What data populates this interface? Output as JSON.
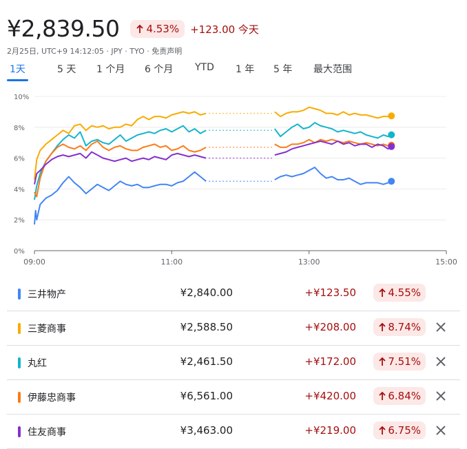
{
  "header": {
    "price": "¥2,839.50",
    "pct": "4.53%",
    "change": "+123.00 今天",
    "subline": "2月25日, UTC+9 14:12:05 · JPY · TYO · 免责声明"
  },
  "tabs": [
    "1天",
    "5 天",
    "1 个月",
    "6 个月",
    "YTD",
    "1 年",
    "5 年",
    "最大范围"
  ],
  "active_tab": "1天",
  "colors": {
    "up_text": "#a50e0e",
    "up_bg": "#fce8e6",
    "accent": "#1a73e8"
  },
  "chart_data": {
    "type": "line",
    "x_ticks": [
      "09:00",
      "11:00",
      "13:00",
      "15:00"
    ],
    "y_ticks": [
      "0%",
      "2%",
      "4%",
      "6%",
      "8%",
      "10%"
    ],
    "xlim": [
      "09:00",
      "15:00"
    ],
    "ylim": [
      0,
      10
    ],
    "break": {
      "start": "11:30",
      "end": "12:30",
      "style": "dotted"
    },
    "last_time": "14:12",
    "series": [
      {
        "name": "三井物产",
        "color": "#4285f4",
        "values": [
          [
            540,
            1.7
          ],
          [
            541,
            2.6
          ],
          [
            542,
            2.0
          ],
          [
            545,
            3.0
          ],
          [
            550,
            3.4
          ],
          [
            555,
            3.6
          ],
          [
            560,
            3.9
          ],
          [
            565,
            4.4
          ],
          [
            570,
            4.8
          ],
          [
            575,
            4.4
          ],
          [
            580,
            4.1
          ],
          [
            585,
            3.7
          ],
          [
            590,
            4.0
          ],
          [
            595,
            4.3
          ],
          [
            600,
            4.1
          ],
          [
            605,
            3.9
          ],
          [
            610,
            4.2
          ],
          [
            615,
            4.5
          ],
          [
            620,
            4.3
          ],
          [
            625,
            4.2
          ],
          [
            630,
            4.3
          ],
          [
            635,
            4.1
          ],
          [
            640,
            4.1
          ],
          [
            645,
            4.2
          ],
          [
            650,
            4.3
          ],
          [
            655,
            4.3
          ],
          [
            660,
            4.2
          ],
          [
            665,
            4.4
          ],
          [
            670,
            4.5
          ],
          [
            675,
            4.8
          ],
          [
            680,
            5.1
          ],
          [
            685,
            4.8
          ],
          [
            690,
            4.5
          ],
          [
            750,
            4.6
          ],
          [
            755,
            4.8
          ],
          [
            760,
            4.9
          ],
          [
            765,
            4.8
          ],
          [
            770,
            4.9
          ],
          [
            775,
            5.0
          ],
          [
            780,
            5.2
          ],
          [
            785,
            5.4
          ],
          [
            790,
            5.0
          ],
          [
            795,
            4.7
          ],
          [
            800,
            4.8
          ],
          [
            805,
            4.6
          ],
          [
            810,
            4.6
          ],
          [
            815,
            4.7
          ],
          [
            820,
            4.5
          ],
          [
            825,
            4.3
          ],
          [
            830,
            4.4
          ],
          [
            835,
            4.4
          ],
          [
            840,
            4.4
          ],
          [
            845,
            4.3
          ],
          [
            849,
            4.4
          ],
          [
            852,
            4.5
          ]
        ]
      },
      {
        "name": "三菱商事",
        "color": "#f9ab00",
        "values": [
          [
            540,
            4.6
          ],
          [
            542,
            5.9
          ],
          [
            545,
            6.5
          ],
          [
            550,
            6.9
          ],
          [
            555,
            7.2
          ],
          [
            560,
            7.5
          ],
          [
            565,
            7.8
          ],
          [
            570,
            7.6
          ],
          [
            575,
            8.1
          ],
          [
            580,
            8.2
          ],
          [
            585,
            7.8
          ],
          [
            590,
            8.1
          ],
          [
            595,
            8.0
          ],
          [
            600,
            8.1
          ],
          [
            605,
            7.9
          ],
          [
            610,
            8.0
          ],
          [
            615,
            8.0
          ],
          [
            620,
            8.2
          ],
          [
            625,
            8.1
          ],
          [
            630,
            8.5
          ],
          [
            635,
            8.7
          ],
          [
            640,
            8.5
          ],
          [
            645,
            8.7
          ],
          [
            650,
            8.7
          ],
          [
            655,
            8.6
          ],
          [
            660,
            8.8
          ],
          [
            665,
            8.9
          ],
          [
            670,
            9.0
          ],
          [
            675,
            8.9
          ],
          [
            680,
            9.0
          ],
          [
            685,
            8.8
          ],
          [
            690,
            8.9
          ],
          [
            750,
            9.0
          ],
          [
            755,
            8.7
          ],
          [
            760,
            8.9
          ],
          [
            765,
            9.0
          ],
          [
            770,
            9.0
          ],
          [
            775,
            9.1
          ],
          [
            780,
            9.3
          ],
          [
            785,
            9.2
          ],
          [
            790,
            9.1
          ],
          [
            795,
            8.9
          ],
          [
            800,
            8.9
          ],
          [
            805,
            8.8
          ],
          [
            810,
            9.0
          ],
          [
            815,
            8.8
          ],
          [
            820,
            8.9
          ],
          [
            825,
            8.8
          ],
          [
            830,
            8.8
          ],
          [
            835,
            8.7
          ],
          [
            840,
            8.6
          ],
          [
            845,
            8.7
          ],
          [
            849,
            8.7
          ],
          [
            852,
            8.74
          ]
        ]
      },
      {
        "name": "丸红",
        "color": "#12b5cb",
        "values": [
          [
            540,
            3.3
          ],
          [
            542,
            4.2
          ],
          [
            545,
            5.0
          ],
          [
            550,
            5.8
          ],
          [
            555,
            6.3
          ],
          [
            560,
            6.8
          ],
          [
            565,
            7.2
          ],
          [
            570,
            7.5
          ],
          [
            575,
            7.3
          ],
          [
            580,
            7.7
          ],
          [
            585,
            6.8
          ],
          [
            590,
            7.1
          ],
          [
            595,
            7.2
          ],
          [
            600,
            7.0
          ],
          [
            605,
            6.9
          ],
          [
            610,
            7.2
          ],
          [
            615,
            7.5
          ],
          [
            620,
            7.1
          ],
          [
            625,
            7.3
          ],
          [
            630,
            7.5
          ],
          [
            635,
            7.6
          ],
          [
            640,
            7.7
          ],
          [
            645,
            7.6
          ],
          [
            650,
            7.8
          ],
          [
            655,
            7.9
          ],
          [
            660,
            7.7
          ],
          [
            665,
            7.9
          ],
          [
            670,
            8.1
          ],
          [
            675,
            7.7
          ],
          [
            680,
            7.9
          ],
          [
            685,
            7.6
          ],
          [
            690,
            7.8
          ],
          [
            750,
            7.9
          ],
          [
            755,
            7.4
          ],
          [
            760,
            7.7
          ],
          [
            765,
            8.0
          ],
          [
            770,
            8.2
          ],
          [
            775,
            7.9
          ],
          [
            780,
            8.0
          ],
          [
            785,
            8.3
          ],
          [
            790,
            8.1
          ],
          [
            795,
            8.0
          ],
          [
            800,
            7.9
          ],
          [
            805,
            7.7
          ],
          [
            810,
            7.8
          ],
          [
            815,
            7.7
          ],
          [
            820,
            7.6
          ],
          [
            825,
            7.7
          ],
          [
            830,
            7.5
          ],
          [
            835,
            7.4
          ],
          [
            840,
            7.3
          ],
          [
            845,
            7.5
          ],
          [
            849,
            7.4
          ],
          [
            852,
            7.51
          ]
        ]
      },
      {
        "name": "伊藤忠商事",
        "color": "#fa7b17",
        "values": [
          [
            540,
            3.8
          ],
          [
            542,
            3.5
          ],
          [
            545,
            4.7
          ],
          [
            550,
            5.8
          ],
          [
            555,
            6.3
          ],
          [
            560,
            6.7
          ],
          [
            565,
            6.9
          ],
          [
            570,
            6.7
          ],
          [
            575,
            6.6
          ],
          [
            580,
            6.8
          ],
          [
            585,
            6.5
          ],
          [
            590,
            6.9
          ],
          [
            595,
            7.1
          ],
          [
            600,
            6.7
          ],
          [
            605,
            6.5
          ],
          [
            610,
            6.7
          ],
          [
            615,
            6.8
          ],
          [
            620,
            6.6
          ],
          [
            625,
            6.5
          ],
          [
            630,
            6.5
          ],
          [
            635,
            6.7
          ],
          [
            640,
            6.8
          ],
          [
            645,
            6.9
          ],
          [
            650,
            6.7
          ],
          [
            655,
            6.8
          ],
          [
            660,
            6.5
          ],
          [
            665,
            6.6
          ],
          [
            670,
            6.8
          ],
          [
            675,
            6.5
          ],
          [
            680,
            6.4
          ],
          [
            685,
            6.5
          ],
          [
            690,
            6.7
          ],
          [
            750,
            6.9
          ],
          [
            755,
            6.7
          ],
          [
            760,
            6.7
          ],
          [
            765,
            6.9
          ],
          [
            770,
            6.9
          ],
          [
            775,
            7.0
          ],
          [
            780,
            7.2
          ],
          [
            785,
            7.0
          ],
          [
            790,
            7.2
          ],
          [
            795,
            7.1
          ],
          [
            800,
            7.2
          ],
          [
            805,
            7.1
          ],
          [
            810,
            7.0
          ],
          [
            815,
            7.1
          ],
          [
            820,
            7.0
          ],
          [
            825,
            6.9
          ],
          [
            830,
            7.0
          ],
          [
            835,
            6.9
          ],
          [
            840,
            6.8
          ],
          [
            845,
            6.9
          ],
          [
            849,
            6.8
          ],
          [
            852,
            6.84
          ]
        ]
      },
      {
        "name": "住友商事",
        "color": "#8430ce",
        "values": [
          [
            540,
            4.3
          ],
          [
            542,
            5.0
          ],
          [
            545,
            5.2
          ],
          [
            550,
            5.6
          ],
          [
            555,
            5.9
          ],
          [
            560,
            6.1
          ],
          [
            565,
            6.2
          ],
          [
            570,
            6.1
          ],
          [
            575,
            6.2
          ],
          [
            580,
            6.3
          ],
          [
            585,
            6.0
          ],
          [
            590,
            6.4
          ],
          [
            595,
            6.2
          ],
          [
            600,
            6.0
          ],
          [
            605,
            5.9
          ],
          [
            610,
            5.8
          ],
          [
            615,
            5.9
          ],
          [
            620,
            6.0
          ],
          [
            625,
            5.8
          ],
          [
            630,
            5.9
          ],
          [
            635,
            6.0
          ],
          [
            640,
            5.9
          ],
          [
            645,
            6.1
          ],
          [
            650,
            6.0
          ],
          [
            655,
            5.9
          ],
          [
            660,
            6.2
          ],
          [
            665,
            6.3
          ],
          [
            670,
            6.2
          ],
          [
            675,
            6.1
          ],
          [
            680,
            6.2
          ],
          [
            685,
            6.1
          ],
          [
            690,
            6.0
          ],
          [
            750,
            6.2
          ],
          [
            755,
            6.3
          ],
          [
            760,
            6.4
          ],
          [
            765,
            6.6
          ],
          [
            770,
            6.7
          ],
          [
            775,
            6.8
          ],
          [
            780,
            6.9
          ],
          [
            785,
            7.0
          ],
          [
            790,
            7.1
          ],
          [
            795,
            7.0
          ],
          [
            800,
            6.9
          ],
          [
            805,
            7.1
          ],
          [
            810,
            6.9
          ],
          [
            815,
            7.0
          ],
          [
            820,
            6.8
          ],
          [
            825,
            6.9
          ],
          [
            830,
            6.9
          ],
          [
            835,
            6.7
          ],
          [
            840,
            6.9
          ],
          [
            845,
            6.8
          ],
          [
            849,
            6.6
          ],
          [
            852,
            6.75
          ]
        ]
      }
    ]
  },
  "rows": [
    {
      "name": "三井物产",
      "price": "¥2,840.00",
      "change": "+¥123.50",
      "pct": "4.55%",
      "color": "#4285f4",
      "removable": false
    },
    {
      "name": "三菱商事",
      "price": "¥2,588.50",
      "change": "+¥208.00",
      "pct": "8.74%",
      "color": "#f9ab00",
      "removable": true
    },
    {
      "name": "丸红",
      "price": "¥2,461.50",
      "change": "+¥172.00",
      "pct": "7.51%",
      "color": "#12b5cb",
      "removable": true
    },
    {
      "name": "伊藤忠商事",
      "price": "¥6,561.00",
      "change": "+¥420.00",
      "pct": "6.84%",
      "color": "#fa7b17",
      "removable": true
    },
    {
      "name": "住友商事",
      "price": "¥3,463.00",
      "change": "+¥219.00",
      "pct": "6.75%",
      "color": "#8430ce",
      "removable": true
    }
  ]
}
